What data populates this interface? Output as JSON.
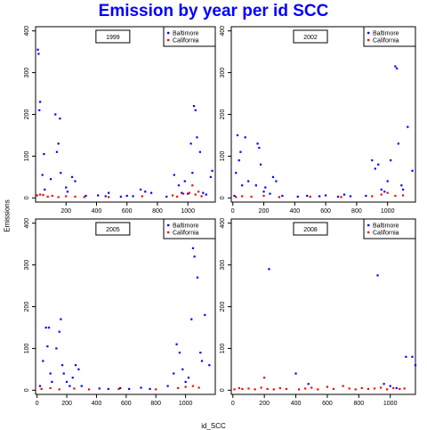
{
  "title": "Emission by year per id SCC",
  "xlabel": "id_SCC",
  "ylabel": "Emissions",
  "colors": {
    "title": "#0000ff",
    "Baltimore": "#0000ff",
    "California": "#ff0000"
  },
  "chart_data": [
    {
      "type": "scatter",
      "panel_label": "1999",
      "xlim": [
        0,
        1180
      ],
      "ylim": [
        -10,
        410
      ],
      "xticks": [
        200,
        400,
        600,
        800,
        1000
      ],
      "yticks": [
        0,
        100,
        200,
        300,
        400
      ],
      "legend": [
        "Baltimore",
        "California"
      ],
      "legend_position": "top-right",
      "series": [
        {
          "name": "Baltimore",
          "color": "#0000ff",
          "points": [
            [
              15,
              355
            ],
            [
              20,
              345
            ],
            [
              25,
              210
            ],
            [
              30,
              230
            ],
            [
              45,
              55
            ],
            [
              55,
              105
            ],
            [
              60,
              20
            ],
            [
              100,
              45
            ],
            [
              130,
              200
            ],
            [
              140,
              110
            ],
            [
              150,
              130
            ],
            [
              160,
              190
            ],
            [
              165,
              60
            ],
            [
              200,
              25
            ],
            [
              210,
              15
            ],
            [
              240,
              50
            ],
            [
              260,
              40
            ],
            [
              330,
              5
            ],
            [
              410,
              6
            ],
            [
              460,
              4
            ],
            [
              480,
              12
            ],
            [
              560,
              3
            ],
            [
              600,
              5
            ],
            [
              640,
              4
            ],
            [
              690,
              20
            ],
            [
              720,
              15
            ],
            [
              760,
              12
            ],
            [
              860,
              3
            ],
            [
              910,
              55
            ],
            [
              940,
              30
            ],
            [
              960,
              12
            ],
            [
              980,
              40
            ],
            [
              1000,
              10
            ],
            [
              1020,
              130
            ],
            [
              1030,
              60
            ],
            [
              1040,
              220
            ],
            [
              1050,
              210
            ],
            [
              1060,
              145
            ],
            [
              1080,
              110
            ],
            [
              1100,
              12
            ],
            [
              1120,
              8
            ],
            [
              1150,
              50
            ],
            [
              1160,
              65
            ]
          ]
        },
        {
          "name": "California",
          "color": "#ff0000",
          "points": [
            [
              10,
              6
            ],
            [
              30,
              8
            ],
            [
              50,
              7
            ],
            [
              80,
              3
            ],
            [
              110,
              5
            ],
            [
              150,
              2
            ],
            [
              200,
              4
            ],
            [
              260,
              3
            ],
            [
              320,
              2
            ],
            [
              480,
              2
            ],
            [
              700,
              4
            ],
            [
              900,
              6
            ],
            [
              930,
              3
            ],
            [
              970,
              10
            ],
            [
              1010,
              12
            ],
            [
              1030,
              30
            ],
            [
              1050,
              8
            ],
            [
              1070,
              15
            ],
            [
              1090,
              4
            ]
          ]
        }
      ]
    },
    {
      "type": "scatter",
      "panel_label": "2002",
      "xlim": [
        -10,
        1180
      ],
      "ylim": [
        -10,
        410
      ],
      "xticks": [
        0,
        200,
        400,
        600,
        800,
        1000,
        1200
      ],
      "yticks": [
        0,
        100,
        200,
        300,
        400
      ],
      "legend": [
        "Baltimore",
        "California"
      ],
      "legend_position": "top-right",
      "series": [
        {
          "name": "Baltimore",
          "color": "#0000ff",
          "points": [
            [
              10,
              5
            ],
            [
              20,
              60
            ],
            [
              30,
              150
            ],
            [
              40,
              90
            ],
            [
              50,
              110
            ],
            [
              60,
              30
            ],
            [
              80,
              145
            ],
            [
              100,
              40
            ],
            [
              150,
              30
            ],
            [
              160,
              130
            ],
            [
              170,
              120
            ],
            [
              180,
              80
            ],
            [
              200,
              15
            ],
            [
              210,
              25
            ],
            [
              240,
              10
            ],
            [
              260,
              50
            ],
            [
              280,
              40
            ],
            [
              320,
              5
            ],
            [
              420,
              3
            ],
            [
              480,
              5
            ],
            [
              560,
              4
            ],
            [
              600,
              6
            ],
            [
              680,
              3
            ],
            [
              720,
              8
            ],
            [
              760,
              4
            ],
            [
              860,
              5
            ],
            [
              900,
              90
            ],
            [
              920,
              70
            ],
            [
              940,
              80
            ],
            [
              960,
              20
            ],
            [
              980,
              15
            ],
            [
              1000,
              40
            ],
            [
              1020,
              90
            ],
            [
              1050,
              315
            ],
            [
              1060,
              310
            ],
            [
              1070,
              130
            ],
            [
              1090,
              30
            ],
            [
              1100,
              20
            ],
            [
              1130,
              170
            ],
            [
              1160,
              65
            ]
          ]
        },
        {
          "name": "California",
          "color": "#ff0000",
          "points": [
            [
              20,
              2
            ],
            [
              60,
              4
            ],
            [
              120,
              3
            ],
            [
              200,
              5
            ],
            [
              300,
              2
            ],
            [
              500,
              3
            ],
            [
              700,
              2
            ],
            [
              900,
              4
            ],
            [
              960,
              8
            ],
            [
              1000,
              12
            ],
            [
              1050,
              5
            ],
            [
              1100,
              6
            ]
          ]
        }
      ]
    },
    {
      "type": "scatter",
      "panel_label": "2005",
      "xlim": [
        -10,
        1200
      ],
      "ylim": [
        -10,
        410
      ],
      "xticks": [
        0,
        200,
        400,
        600,
        800,
        1000
      ],
      "yticks": [
        0,
        100,
        200,
        300,
        400
      ],
      "legend": [
        "Baltimore",
        "California"
      ],
      "legend_position": "top-right",
      "series": [
        {
          "name": "Baltimore",
          "color": "#0000ff",
          "points": [
            [
              20,
              10
            ],
            [
              40,
              70
            ],
            [
              60,
              150
            ],
            [
              70,
              105
            ],
            [
              80,
              150
            ],
            [
              90,
              40
            ],
            [
              100,
              20
            ],
            [
              130,
              100
            ],
            [
              150,
              140
            ],
            [
              160,
              170
            ],
            [
              170,
              60
            ],
            [
              180,
              40
            ],
            [
              200,
              20
            ],
            [
              220,
              10
            ],
            [
              240,
              30
            ],
            [
              260,
              60
            ],
            [
              280,
              50
            ],
            [
              300,
              10
            ],
            [
              420,
              4
            ],
            [
              480,
              3
            ],
            [
              560,
              5
            ],
            [
              620,
              3
            ],
            [
              700,
              6
            ],
            [
              760,
              3
            ],
            [
              880,
              10
            ],
            [
              920,
              40
            ],
            [
              940,
              110
            ],
            [
              960,
              90
            ],
            [
              980,
              50
            ],
            [
              1000,
              20
            ],
            [
              1020,
              30
            ],
            [
              1040,
              170
            ],
            [
              1050,
              340
            ],
            [
              1060,
              320
            ],
            [
              1080,
              270
            ],
            [
              1100,
              90
            ],
            [
              1110,
              70
            ],
            [
              1130,
              180
            ],
            [
              1160,
              60
            ]
          ]
        },
        {
          "name": "California",
          "color": "#ff0000",
          "points": [
            [
              30,
              3
            ],
            [
              90,
              5
            ],
            [
              150,
              2
            ],
            [
              250,
              4
            ],
            [
              350,
              2
            ],
            [
              550,
              3
            ],
            [
              800,
              2
            ],
            [
              950,
              5
            ],
            [
              1000,
              8
            ],
            [
              1050,
              10
            ],
            [
              1090,
              6
            ]
          ]
        }
      ]
    },
    {
      "type": "scatter",
      "panel_label": "2008",
      "xlim": [
        -10,
        1160
      ],
      "ylim": [
        -10,
        410
      ],
      "xticks": [
        0,
        200,
        400,
        600,
        800,
        1000
      ],
      "yticks": [
        0,
        100,
        200,
        300,
        400
      ],
      "legend": [
        "Baltimore",
        "California"
      ],
      "legend_position": "top-right",
      "series": [
        {
          "name": "Baltimore",
          "color": "#0000ff",
          "points": [
            [
              230,
              290
            ],
            [
              400,
              40
            ],
            [
              480,
              15
            ],
            [
              920,
              275
            ],
            [
              960,
              15
            ],
            [
              1000,
              10
            ],
            [
              1040,
              5
            ],
            [
              1100,
              80
            ],
            [
              1140,
              80
            ],
            [
              1160,
              60
            ]
          ]
        },
        {
          "name": "California",
          "color": "#ff0000",
          "points": [
            [
              10,
              2
            ],
            [
              40,
              5
            ],
            [
              60,
              3
            ],
            [
              100,
              4
            ],
            [
              140,
              2
            ],
            [
              180,
              6
            ],
            [
              200,
              30
            ],
            [
              220,
              3
            ],
            [
              260,
              2
            ],
            [
              300,
              5
            ],
            [
              340,
              3
            ],
            [
              420,
              2
            ],
            [
              460,
              4
            ],
            [
              500,
              6
            ],
            [
              540,
              2
            ],
            [
              600,
              8
            ],
            [
              640,
              3
            ],
            [
              700,
              10
            ],
            [
              740,
              4
            ],
            [
              780,
              2
            ],
            [
              820,
              5
            ],
            [
              860,
              3
            ],
            [
              900,
              4
            ],
            [
              940,
              6
            ],
            [
              980,
              2
            ],
            [
              1020,
              5
            ],
            [
              1060,
              3
            ],
            [
              1090,
              4
            ]
          ]
        }
      ]
    }
  ]
}
